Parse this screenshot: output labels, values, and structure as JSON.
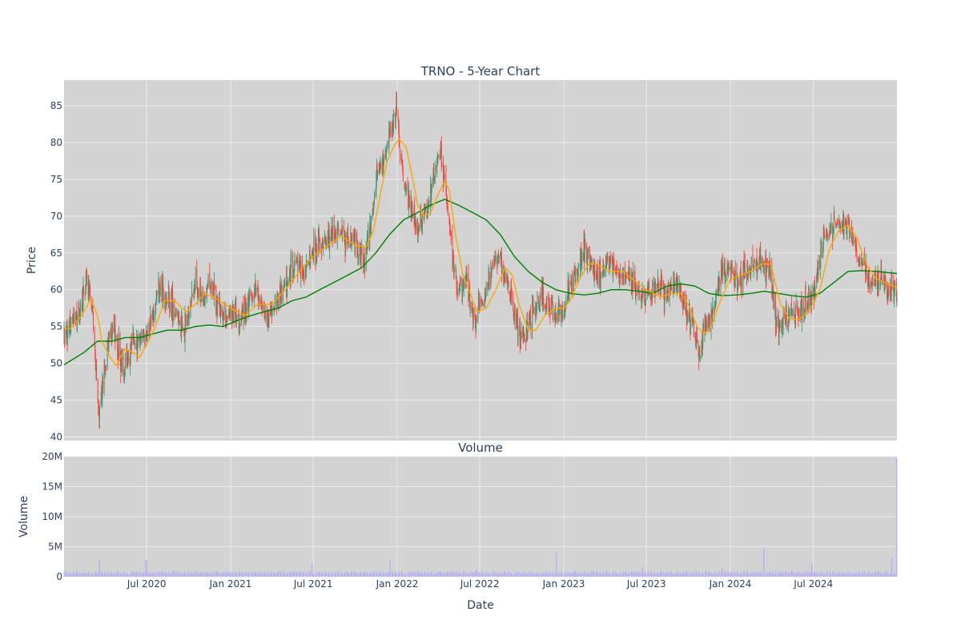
{
  "chart_data": [
    {
      "type": "candlestick",
      "title": "TRNO - 5-Year Chart",
      "xlabel": "",
      "ylabel": "Price",
      "ylim": [
        39.5,
        88.5
      ],
      "yticks": [
        40,
        45,
        50,
        55,
        60,
        65,
        70,
        75,
        80,
        85
      ],
      "xlim": [
        "2020-01-02",
        "2024-12-31"
      ],
      "xticks": [
        "2020-07-01",
        "2021-01-01",
        "2021-07-01",
        "2022-01-01",
        "2022-07-01",
        "2023-01-01",
        "2023-07-01",
        "2024-01-01",
        "2024-07-01"
      ],
      "grid": true,
      "legend": "none",
      "colors": {
        "increasing": "#3d9970",
        "decreasing": "#ff4136",
        "ma_short": "#ffa500",
        "ma_long": "#008000",
        "plot_bg": "#d3d3d3",
        "grid": "#ebebeb"
      },
      "price_path": [
        [
          "2020-01-02",
          53.5
        ],
        [
          "2020-01-20",
          55.8
        ],
        [
          "2020-02-05",
          57.5
        ],
        [
          "2020-02-20",
          61.5
        ],
        [
          "2020-03-05",
          57.0
        ],
        [
          "2020-03-12",
          48.0
        ],
        [
          "2020-03-18",
          43.5
        ],
        [
          "2020-03-23",
          46.0
        ],
        [
          "2020-04-01",
          49.5
        ],
        [
          "2020-04-10",
          53.5
        ],
        [
          "2020-04-20",
          54.5
        ],
        [
          "2020-05-01",
          52.0
        ],
        [
          "2020-05-12",
          48.5
        ],
        [
          "2020-05-20",
          50.5
        ],
        [
          "2020-06-01",
          52.5
        ],
        [
          "2020-06-15",
          53.0
        ],
        [
          "2020-07-01",
          54.0
        ],
        [
          "2020-07-15",
          56.5
        ],
        [
          "2020-07-25",
          60.5
        ],
        [
          "2020-08-05",
          59.5
        ],
        [
          "2020-08-20",
          58.5
        ],
        [
          "2020-09-05",
          56.5
        ],
        [
          "2020-09-20",
          54.0
        ],
        [
          "2020-10-01",
          57.0
        ],
        [
          "2020-10-15",
          60.5
        ],
        [
          "2020-11-01",
          58.5
        ],
        [
          "2020-11-15",
          60.5
        ],
        [
          "2020-12-01",
          58.5
        ],
        [
          "2020-12-20",
          56.5
        ],
        [
          "2021-01-05",
          57.5
        ],
        [
          "2021-01-20",
          56.0
        ],
        [
          "2021-02-05",
          57.5
        ],
        [
          "2021-02-25",
          60.0
        ],
        [
          "2021-03-10",
          58.0
        ],
        [
          "2021-03-25",
          56.0
        ],
        [
          "2021-04-10",
          58.0
        ],
        [
          "2021-04-25",
          60.0
        ],
        [
          "2021-05-10",
          62.5
        ],
        [
          "2021-05-25",
          64.0
        ],
        [
          "2021-06-10",
          62.5
        ],
        [
          "2021-06-25",
          64.5
        ],
        [
          "2021-07-10",
          66.0
        ],
        [
          "2021-07-25",
          67.0
        ],
        [
          "2021-08-10",
          67.5
        ],
        [
          "2021-08-25",
          68.0
        ],
        [
          "2021-09-10",
          66.5
        ],
        [
          "2021-09-25",
          67.5
        ],
        [
          "2021-10-10",
          65.0
        ],
        [
          "2021-10-20",
          64.0
        ],
        [
          "2021-11-01",
          67.5
        ],
        [
          "2021-11-10",
          72.0
        ],
        [
          "2021-11-20",
          76.0
        ],
        [
          "2021-12-01",
          77.5
        ],
        [
          "2021-12-10",
          80.0
        ],
        [
          "2021-12-20",
          81.5
        ],
        [
          "2021-12-30",
          85.0
        ],
        [
          "2022-01-07",
          79.5
        ],
        [
          "2022-01-15",
          75.0
        ],
        [
          "2022-01-25",
          72.5
        ],
        [
          "2022-02-05",
          70.0
        ],
        [
          "2022-02-15",
          68.5
        ],
        [
          "2022-03-01",
          70.0
        ],
        [
          "2022-03-10",
          71.0
        ],
        [
          "2022-03-20",
          75.0
        ],
        [
          "2022-03-30",
          77.0
        ],
        [
          "2022-04-05",
          79.0
        ],
        [
          "2022-04-12",
          76.5
        ],
        [
          "2022-04-20",
          72.0
        ],
        [
          "2022-05-01",
          66.0
        ],
        [
          "2022-05-10",
          61.5
        ],
        [
          "2022-05-20",
          60.5
        ],
        [
          "2022-06-01",
          62.0
        ],
        [
          "2022-06-10",
          58.5
        ],
        [
          "2022-06-20",
          56.0
        ],
        [
          "2022-07-01",
          57.5
        ],
        [
          "2022-07-15",
          60.0
        ],
        [
          "2022-08-01",
          63.5
        ],
        [
          "2022-08-10",
          65.0
        ],
        [
          "2022-08-20",
          62.5
        ],
        [
          "2022-09-01",
          60.5
        ],
        [
          "2022-09-15",
          56.5
        ],
        [
          "2022-09-25",
          53.0
        ],
        [
          "2022-10-05",
          53.5
        ],
        [
          "2022-10-15",
          55.5
        ],
        [
          "2022-11-01",
          57.5
        ],
        [
          "2022-11-15",
          58.5
        ],
        [
          "2022-12-01",
          58.0
        ],
        [
          "2022-12-15",
          56.5
        ],
        [
          "2023-01-01",
          57.0
        ],
        [
          "2023-01-15",
          60.0
        ],
        [
          "2023-02-01",
          63.0
        ],
        [
          "2023-02-10",
          65.5
        ],
        [
          "2023-02-25",
          64.0
        ],
        [
          "2023-03-10",
          62.0
        ],
        [
          "2023-03-25",
          62.5
        ],
        [
          "2023-04-10",
          63.5
        ],
        [
          "2023-04-25",
          62.5
        ],
        [
          "2023-05-10",
          61.5
        ],
        [
          "2023-05-25",
          62.0
        ],
        [
          "2023-06-10",
          60.5
        ],
        [
          "2023-06-25",
          58.5
        ],
        [
          "2023-07-10",
          59.5
        ],
        [
          "2023-07-25",
          60.5
        ],
        [
          "2023-08-10",
          59.5
        ],
        [
          "2023-08-25",
          60.0
        ],
        [
          "2023-09-10",
          60.5
        ],
        [
          "2023-09-20",
          58.5
        ],
        [
          "2023-10-01",
          56.5
        ],
        [
          "2023-10-15",
          54.5
        ],
        [
          "2023-10-25",
          51.5
        ],
        [
          "2023-11-05",
          54.5
        ],
        [
          "2023-11-15",
          55.5
        ],
        [
          "2023-12-01",
          59.5
        ],
        [
          "2023-12-15",
          62.5
        ],
        [
          "2024-01-01",
          62.5
        ],
        [
          "2024-01-15",
          61.0
        ],
        [
          "2024-02-01",
          62.5
        ],
        [
          "2024-02-15",
          62.5
        ],
        [
          "2024-03-01",
          64.0
        ],
        [
          "2024-03-15",
          63.5
        ],
        [
          "2024-03-28",
          62.5
        ],
        [
          "2024-04-05",
          57.5
        ],
        [
          "2024-04-15",
          55.0
        ],
        [
          "2024-04-30",
          55.5
        ],
        [
          "2024-05-15",
          57.5
        ],
        [
          "2024-06-01",
          56.5
        ],
        [
          "2024-06-15",
          58.0
        ],
        [
          "2024-07-01",
          59.5
        ],
        [
          "2024-07-15",
          64.0
        ],
        [
          "2024-07-25",
          67.5
        ],
        [
          "2024-08-10",
          68.5
        ],
        [
          "2024-08-25",
          69.0
        ],
        [
          "2024-09-10",
          68.5
        ],
        [
          "2024-09-25",
          67.5
        ],
        [
          "2024-10-10",
          64.5
        ],
        [
          "2024-10-25",
          62.5
        ],
        [
          "2024-11-10",
          61.0
        ],
        [
          "2024-11-25",
          61.5
        ],
        [
          "2024-12-10",
          60.5
        ],
        [
          "2024-12-31",
          59.0
        ]
      ],
      "ma_short": [
        [
          "2020-01-02",
          54.8
        ],
        [
          "2020-01-15",
          54.7
        ],
        [
          "2020-02-10",
          56.5
        ],
        [
          "2020-03-01",
          58.8
        ],
        [
          "2020-03-15",
          56.5
        ],
        [
          "2020-03-25",
          53.0
        ],
        [
          "2020-04-10",
          51.0
        ],
        [
          "2020-04-25",
          49.7
        ],
        [
          "2020-05-15",
          52.0
        ],
        [
          "2020-06-01",
          51.5
        ],
        [
          "2020-06-15",
          50.8
        ],
        [
          "2020-07-01",
          52.5
        ],
        [
          "2020-07-20",
          55.0
        ],
        [
          "2020-08-10",
          58.5
        ],
        [
          "2020-09-01",
          58.5
        ],
        [
          "2020-09-25",
          57.0
        ],
        [
          "2020-10-15",
          58.0
        ],
        [
          "2020-11-05",
          59.5
        ],
        [
          "2020-12-01",
          58.8
        ],
        [
          "2021-01-01",
          57.5
        ],
        [
          "2021-02-01",
          56.5
        ],
        [
          "2021-03-01",
          58.0
        ],
        [
          "2021-04-01",
          58.0
        ],
        [
          "2021-05-01",
          60.0
        ],
        [
          "2021-06-01",
          62.5
        ],
        [
          "2021-07-01",
          64.5
        ],
        [
          "2021-08-01",
          66.0
        ],
        [
          "2021-09-01",
          67.3
        ],
        [
          "2021-10-01",
          66.0
        ],
        [
          "2021-10-25",
          65.8
        ],
        [
          "2021-11-10",
          68.0
        ],
        [
          "2021-11-25",
          73.0
        ],
        [
          "2021-12-10",
          77.5
        ],
        [
          "2021-12-25",
          79.5
        ],
        [
          "2022-01-05",
          80.5
        ],
        [
          "2022-01-20",
          79.5
        ],
        [
          "2022-02-01",
          76.0
        ],
        [
          "2022-02-15",
          71.5
        ],
        [
          "2022-03-01",
          70.0
        ],
        [
          "2022-03-15",
          70.5
        ],
        [
          "2022-04-01",
          73.0
        ],
        [
          "2022-04-15",
          74.8
        ],
        [
          "2022-04-25",
          73.5
        ],
        [
          "2022-05-10",
          67.0
        ],
        [
          "2022-05-25",
          62.0
        ],
        [
          "2022-06-10",
          59.5
        ],
        [
          "2022-06-25",
          57.0
        ],
        [
          "2022-07-15",
          57.5
        ],
        [
          "2022-08-05",
          60.0
        ],
        [
          "2022-08-25",
          63.0
        ],
        [
          "2022-09-10",
          62.0
        ],
        [
          "2022-09-25",
          58.0
        ],
        [
          "2022-10-15",
          54.5
        ],
        [
          "2022-11-01",
          54.5
        ],
        [
          "2022-11-20",
          56.5
        ],
        [
          "2022-12-15",
          57.5
        ],
        [
          "2023-01-01",
          57.5
        ],
        [
          "2023-01-15",
          58.5
        ],
        [
          "2023-02-05",
          61.5
        ],
        [
          "2023-02-25",
          63.5
        ],
        [
          "2023-03-15",
          63.5
        ],
        [
          "2023-04-10",
          62.5
        ],
        [
          "2023-05-10",
          62.5
        ],
        [
          "2023-06-10",
          61.0
        ],
        [
          "2023-07-01",
          60.0
        ],
        [
          "2023-08-01",
          59.0
        ],
        [
          "2023-08-25",
          59.5
        ],
        [
          "2023-09-15",
          59.5
        ],
        [
          "2023-10-01",
          58.0
        ],
        [
          "2023-10-20",
          55.0
        ],
        [
          "2023-11-05",
          54.0
        ],
        [
          "2023-11-20",
          55.0
        ],
        [
          "2023-12-10",
          58.5
        ],
        [
          "2024-01-01",
          61.5
        ],
        [
          "2024-01-25",
          62.0
        ],
        [
          "2024-02-15",
          62.5
        ],
        [
          "2024-03-10",
          63.5
        ],
        [
          "2024-03-30",
          63.5
        ],
        [
          "2024-04-20",
          58.0
        ],
        [
          "2024-05-10",
          56.0
        ],
        [
          "2024-06-01",
          56.0
        ],
        [
          "2024-06-25",
          57.5
        ],
        [
          "2024-07-15",
          60.0
        ],
        [
          "2024-08-05",
          65.5
        ],
        [
          "2024-08-25",
          68.0
        ],
        [
          "2024-09-15",
          68.8
        ],
        [
          "2024-10-05",
          67.0
        ],
        [
          "2024-10-25",
          63.5
        ],
        [
          "2024-11-15",
          61.5
        ],
        [
          "2024-12-05",
          61.0
        ],
        [
          "2024-12-31",
          60.3
        ]
      ],
      "ma_long": [
        [
          "2020-01-02",
          49.8
        ],
        [
          "2020-02-15",
          51.5
        ],
        [
          "2020-03-15",
          53.0
        ],
        [
          "2020-04-15",
          53.0
        ],
        [
          "2020-05-15",
          53.5
        ],
        [
          "2020-06-15",
          53.5
        ],
        [
          "2020-07-15",
          54.0
        ],
        [
          "2020-08-15",
          54.5
        ],
        [
          "2020-09-15",
          54.5
        ],
        [
          "2020-10-15",
          55.0
        ],
        [
          "2020-11-15",
          55.2
        ],
        [
          "2020-12-15",
          55.0
        ],
        [
          "2021-01-15",
          55.8
        ],
        [
          "2021-02-15",
          56.5
        ],
        [
          "2021-03-15",
          57.0
        ],
        [
          "2021-04-15",
          57.5
        ],
        [
          "2021-05-15",
          58.5
        ],
        [
          "2021-06-15",
          59.0
        ],
        [
          "2021-07-15",
          60.0
        ],
        [
          "2021-08-15",
          61.0
        ],
        [
          "2021-09-15",
          62.0
        ],
        [
          "2021-10-15",
          63.0
        ],
        [
          "2021-11-15",
          65.0
        ],
        [
          "2021-12-15",
          67.5
        ],
        [
          "2022-01-15",
          69.5
        ],
        [
          "2022-02-15",
          70.5
        ],
        [
          "2022-03-15",
          71.5
        ],
        [
          "2022-04-15",
          72.3
        ],
        [
          "2022-05-15",
          71.5
        ],
        [
          "2022-06-15",
          70.5
        ],
        [
          "2022-07-15",
          69.5
        ],
        [
          "2022-08-15",
          67.5
        ],
        [
          "2022-09-15",
          64.5
        ],
        [
          "2022-10-15",
          62.5
        ],
        [
          "2022-11-15",
          61.0
        ],
        [
          "2022-12-15",
          60.0
        ],
        [
          "2023-01-15",
          59.5
        ],
        [
          "2023-02-15",
          59.3
        ],
        [
          "2023-03-15",
          59.5
        ],
        [
          "2023-04-15",
          60.0
        ],
        [
          "2023-05-15",
          60.0
        ],
        [
          "2023-06-15",
          59.8
        ],
        [
          "2023-07-15",
          59.5
        ],
        [
          "2023-08-15",
          60.5
        ],
        [
          "2023-09-15",
          60.8
        ],
        [
          "2023-10-15",
          60.5
        ],
        [
          "2023-11-15",
          59.5
        ],
        [
          "2023-12-15",
          59.2
        ],
        [
          "2024-01-15",
          59.3
        ],
        [
          "2024-02-15",
          59.5
        ],
        [
          "2024-03-15",
          59.8
        ],
        [
          "2024-04-15",
          59.5
        ],
        [
          "2024-05-15",
          59.2
        ],
        [
          "2024-06-15",
          59.0
        ],
        [
          "2024-07-15",
          59.5
        ],
        [
          "2024-08-15",
          61.0
        ],
        [
          "2024-09-15",
          62.5
        ],
        [
          "2024-10-15",
          62.6
        ],
        [
          "2024-11-15",
          62.5
        ],
        [
          "2024-12-31",
          62.2
        ]
      ]
    },
    {
      "type": "bar",
      "title": "Volume",
      "xlabel": "Date",
      "ylabel": "Volume",
      "ylim": [
        0,
        20000000
      ],
      "yticks": [
        0,
        5000000,
        10000000,
        15000000,
        20000000
      ],
      "ytick_labels": [
        "0",
        "5M",
        "10M",
        "15M",
        "20M"
      ],
      "xtick_labels": [
        "Jul 2020",
        "Jan 2021",
        "Jul 2021",
        "Jan 2022",
        "Jul 2022",
        "Jan 2023",
        "Jul 2023",
        "Jan 2024",
        "Jul 2024"
      ],
      "grid": true,
      "colors": {
        "bar": "#b7b3ee",
        "plot_bg": "#d3d3d3"
      },
      "baseline_volume": 700000,
      "spikes": [
        [
          "2020-03-20",
          2900000
        ],
        [
          "2020-06-30",
          2800000
        ],
        [
          "2021-06-28",
          2300000
        ],
        [
          "2021-12-17",
          2900000
        ],
        [
          "2022-06-24",
          1200000
        ],
        [
          "2022-12-16",
          4200000
        ],
        [
          "2023-06-23",
          1500000
        ],
        [
          "2023-12-15",
          1400000
        ],
        [
          "2024-03-15",
          4600000
        ],
        [
          "2024-06-28",
          2200000
        ],
        [
          "2024-12-20",
          3200000
        ],
        [
          "2024-12-30",
          19800000
        ]
      ]
    }
  ]
}
